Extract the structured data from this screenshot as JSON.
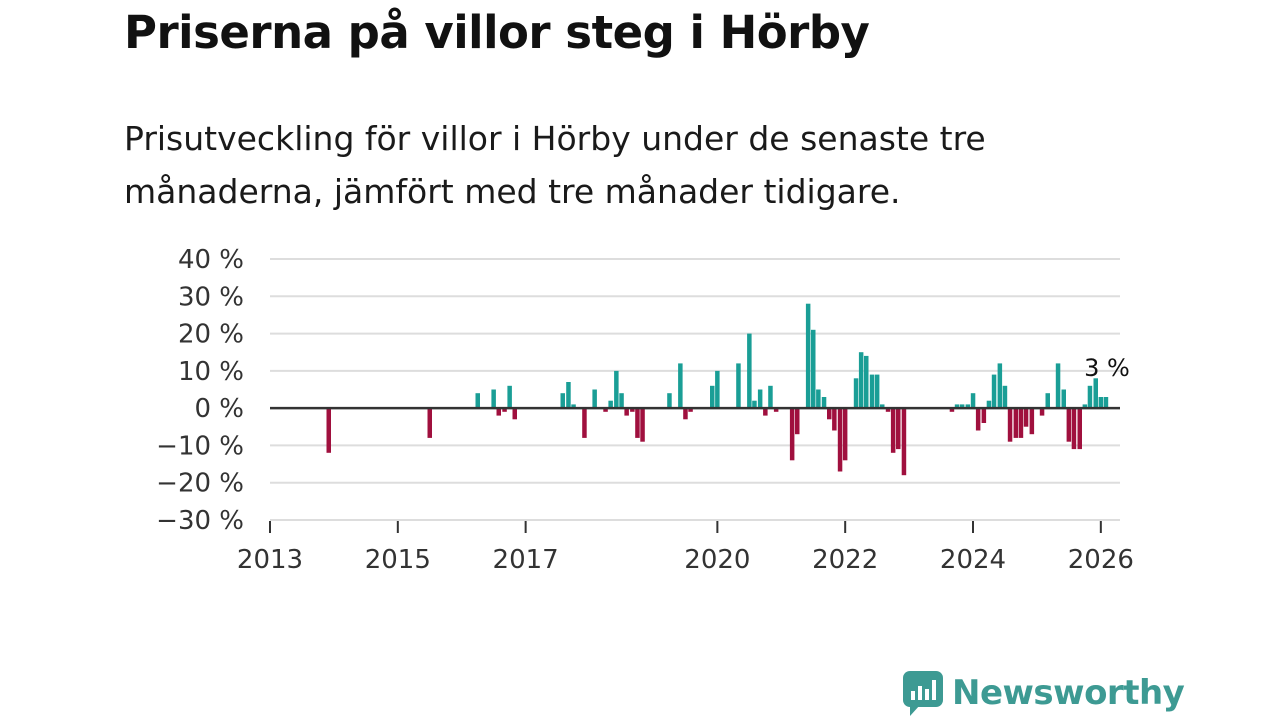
{
  "title": "Priserna på villor steg i Hörby",
  "subtitle": "Prisutveckling för villor i Hörby under de senaste tre månaderna, jämfört med tre månader tidigare.",
  "brand": {
    "name": "Newsworthy",
    "color": "#3d9a93"
  },
  "colors": {
    "positive": "#1a9e96",
    "negative": "#a0103e",
    "grid": "#dddddd",
    "zero": "#333333"
  },
  "chart_data": {
    "type": "bar",
    "title": "Priserna på villor steg i Hörby",
    "xlabel": "",
    "ylabel": "",
    "ylim": [
      -30,
      40
    ],
    "xlim": [
      2013.0,
      2026.3
    ],
    "yticks": [
      40,
      30,
      20,
      10,
      0,
      -10,
      -20,
      -30
    ],
    "ytick_labels": [
      "40 %",
      "30 %",
      "20 %",
      "10 %",
      "0 %",
      "−10 %",
      "−20 %",
      "−30 %"
    ],
    "xticks": [
      2013,
      2015,
      2017,
      2020,
      2022,
      2024,
      2026
    ],
    "xtick_labels": [
      "2013",
      "2015",
      "2017",
      "2020",
      "2022",
      "2024",
      "2026"
    ],
    "annotation": {
      "label": "3 %",
      "x": 2026.08,
      "y": 3
    },
    "x": [
      2013.92,
      2015.5,
      2016.25,
      2016.5,
      2016.58,
      2016.67,
      2016.75,
      2016.83,
      2017.58,
      2017.67,
      2017.75,
      2017.92,
      2018.08,
      2018.25,
      2018.33,
      2018.42,
      2018.5,
      2018.58,
      2018.67,
      2018.75,
      2018.83,
      2019.25,
      2019.42,
      2019.5,
      2019.58,
      2019.92,
      2020.0,
      2020.33,
      2020.5,
      2020.58,
      2020.67,
      2020.75,
      2020.83,
      2020.92,
      2021.17,
      2021.25,
      2021.42,
      2021.5,
      2021.58,
      2021.67,
      2021.75,
      2021.83,
      2021.92,
      2022.0,
      2022.17,
      2022.25,
      2022.33,
      2022.42,
      2022.5,
      2022.58,
      2022.67,
      2022.75,
      2022.83,
      2022.92,
      2023.67,
      2023.75,
      2023.83,
      2023.92,
      2024.0,
      2024.08,
      2024.17,
      2024.25,
      2024.33,
      2024.42,
      2024.5,
      2024.58,
      2024.67,
      2024.75,
      2024.83,
      2024.92,
      2025.08,
      2025.17,
      2025.33,
      2025.42,
      2025.5,
      2025.58,
      2025.67,
      2025.75,
      2025.83,
      2025.92,
      2026.0,
      2026.08
    ],
    "values": [
      -12,
      -8,
      4,
      5,
      -2,
      -1,
      6,
      -3,
      4,
      7,
      1,
      -8,
      5,
      -1,
      2,
      10,
      4,
      -2,
      -1,
      -8,
      -9,
      4,
      12,
      -3,
      -1,
      6,
      10,
      12,
      20,
      2,
      5,
      -2,
      6,
      -1,
      -14,
      -7,
      28,
      21,
      5,
      3,
      -3,
      -6,
      -17,
      -14,
      8,
      15,
      14,
      9,
      9,
      1,
      -1,
      -12,
      -11,
      -18,
      -1,
      1,
      1,
      1,
      4,
      -6,
      -4,
      2,
      9,
      12,
      6,
      -9,
      -8,
      -8,
      -5,
      -7,
      -2,
      4,
      12,
      5,
      -9,
      -11,
      -11,
      1,
      6,
      8,
      3,
      3
    ]
  }
}
